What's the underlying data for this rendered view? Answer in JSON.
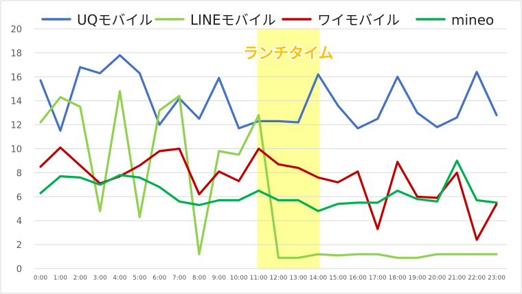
{
  "chart_data": {
    "type": "line",
    "categories": [
      "0:00",
      "1:00",
      "2:00",
      "3:00",
      "4:00",
      "5:00",
      "6:00",
      "7:00",
      "8:00",
      "9:00",
      "10:00",
      "11:00",
      "12:00",
      "13:00",
      "14:00",
      "15:00",
      "16:00",
      "17:00",
      "18:00",
      "19:00",
      "20:00",
      "21:00",
      "22:00",
      "23:00"
    ],
    "ylim": [
      0,
      20
    ],
    "yticks": [
      "0",
      "2",
      "4",
      "6",
      "8",
      "10",
      "12",
      "14",
      "16",
      "18",
      "20"
    ],
    "grid": true,
    "legend_position": "top",
    "highlight": {
      "from": "11:00",
      "to": "14:00",
      "label": "ランチタイム",
      "color": "#ffff99",
      "label_color": "#ffc000"
    },
    "series": [
      {
        "name": "UQモバイル",
        "color": "#4472c4",
        "values": [
          15.7,
          11.5,
          16.8,
          16.3,
          17.8,
          16.3,
          12.0,
          14.2,
          12.5,
          15.9,
          11.7,
          12.3,
          12.3,
          12.2,
          16.2,
          13.6,
          11.7,
          12.5,
          16.0,
          13.0,
          11.8,
          12.6,
          16.4,
          12.8
        ]
      },
      {
        "name": "LINEモバイル",
        "color": "#92d050",
        "values": [
          12.2,
          14.3,
          13.5,
          4.8,
          14.8,
          4.3,
          13.2,
          14.4,
          1.2,
          9.8,
          9.5,
          12.8,
          0.9,
          0.9,
          1.2,
          1.1,
          1.2,
          1.2,
          0.9,
          0.9,
          1.2,
          1.2,
          1.2,
          1.2
        ]
      },
      {
        "name": "ワイモバイル",
        "color": "#c00000",
        "values": [
          8.5,
          10.1,
          8.6,
          7.1,
          7.7,
          8.6,
          9.8,
          10.0,
          6.2,
          8.1,
          7.3,
          10.0,
          8.7,
          8.4,
          7.6,
          7.2,
          8.1,
          3.3,
          8.9,
          6.0,
          5.9,
          8.0,
          2.4,
          5.4
        ]
      },
      {
        "name": "mineo",
        "color": "#00b050",
        "values": [
          6.3,
          7.7,
          7.6,
          7.0,
          7.8,
          7.6,
          6.8,
          5.6,
          5.3,
          5.7,
          5.7,
          6.5,
          5.7,
          5.7,
          4.8,
          5.4,
          5.5,
          5.5,
          6.5,
          5.8,
          5.6,
          9.0,
          5.7,
          5.5
        ]
      }
    ]
  }
}
